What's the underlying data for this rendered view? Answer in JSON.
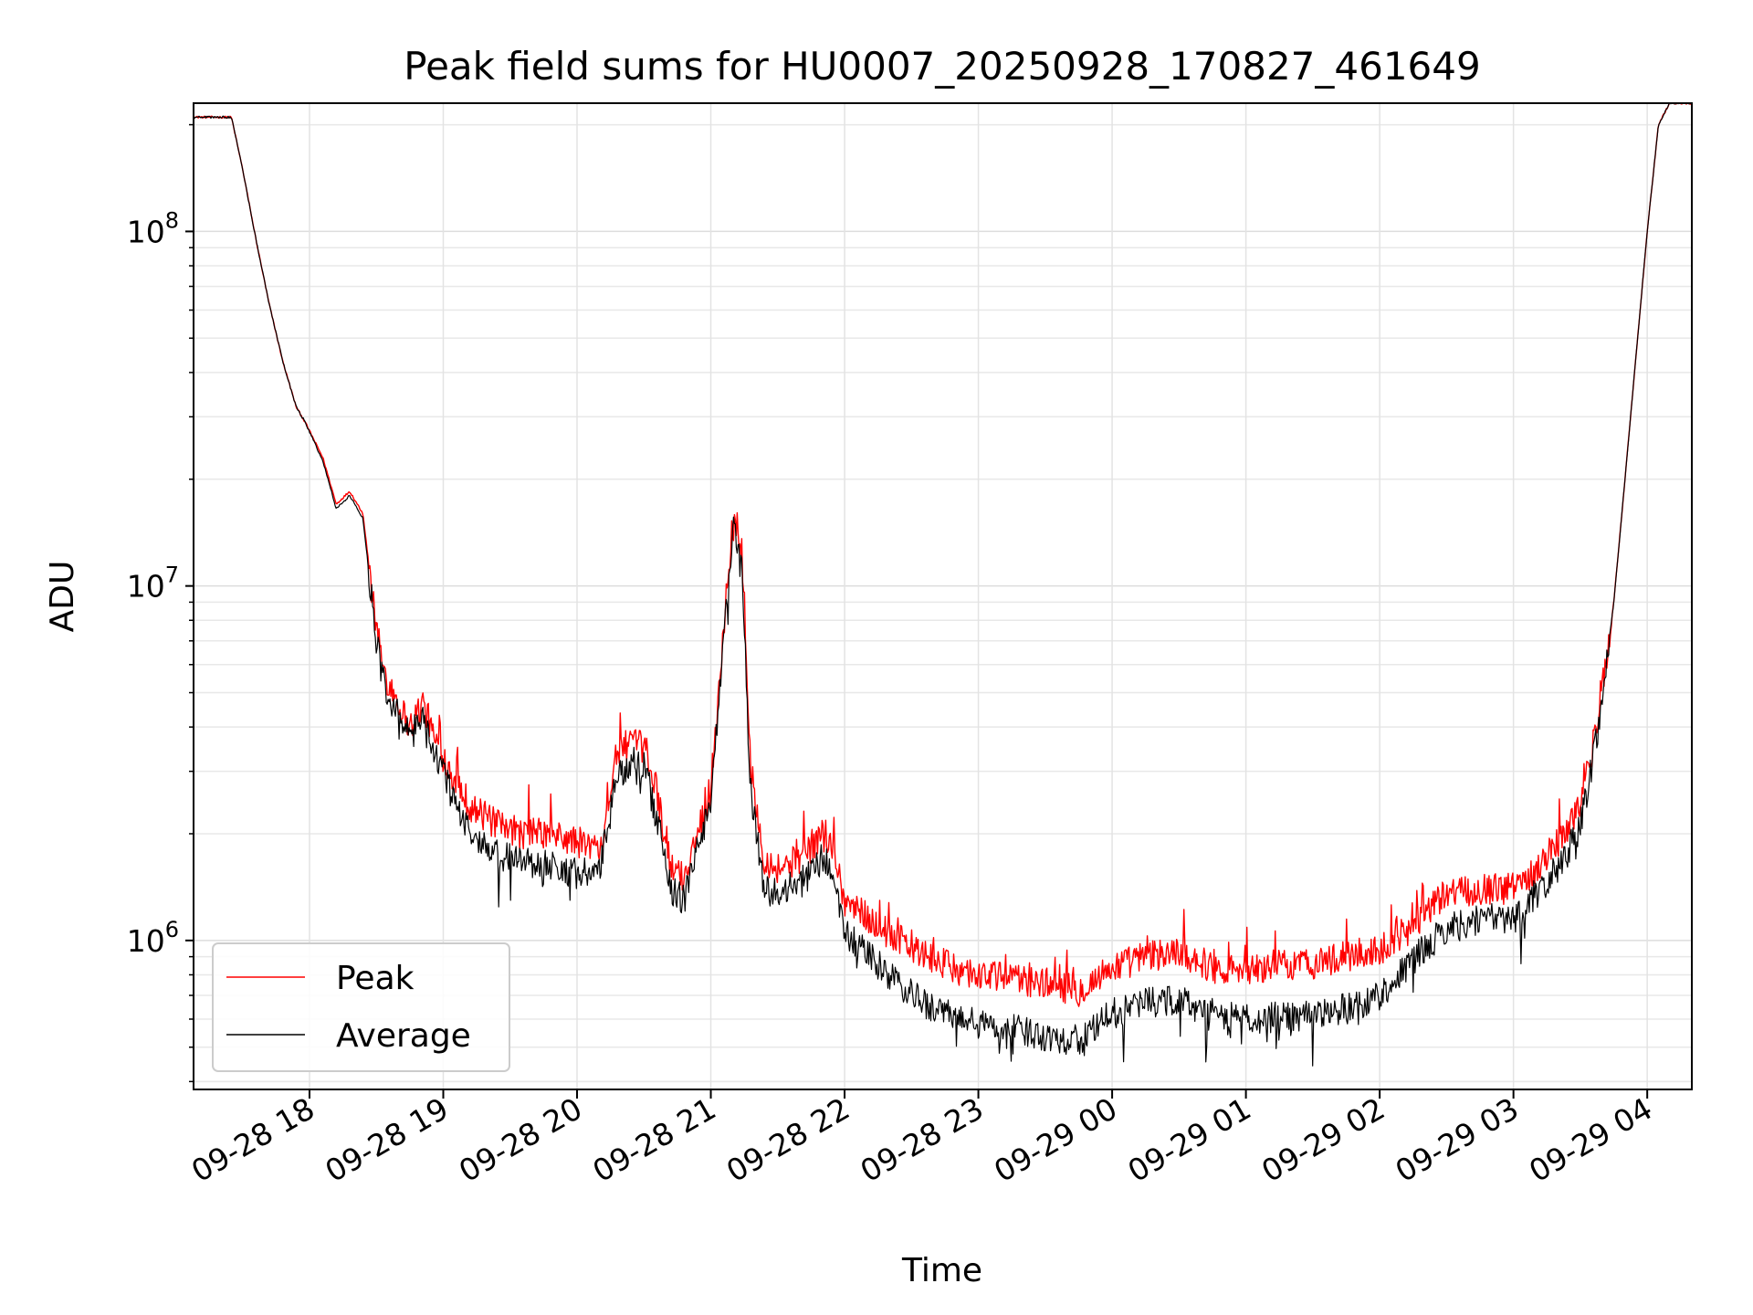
{
  "chart_data": {
    "type": "line",
    "title": "Peak field sums for HU0007_20250928_170827_461649",
    "xlabel": "Time",
    "ylabel": "ADU",
    "yscale": "log",
    "ylim": [
      380000,
      230000000
    ],
    "xlim": [
      "2025-09-28 17:08",
      "2025-09-29 04:20"
    ],
    "grid": true,
    "legend_position": "lower-left",
    "x_tick_labels": [
      "09-28 18",
      "09-28 19",
      "09-28 20",
      "09-28 21",
      "09-28 22",
      "09-28 23",
      "09-29 00",
      "09-29 01",
      "09-29 02",
      "09-29 03",
      "09-29 04"
    ],
    "y_tick_labels": [
      {
        "value": 1000000,
        "base": "10",
        "exp": "6"
      },
      {
        "value": 10000000,
        "base": "10",
        "exp": "7"
      },
      {
        "value": 100000000,
        "base": "10",
        "exp": "8"
      }
    ],
    "x": [
      "2025-09-28 17:08",
      "2025-09-28 17:25",
      "2025-09-28 17:30",
      "2025-09-28 17:36",
      "2025-09-28 17:42",
      "2025-09-28 17:48",
      "2025-09-28 17:54",
      "2025-09-28 17:58",
      "2025-09-28 18:06",
      "2025-09-28 18:12",
      "2025-09-28 18:18",
      "2025-09-28 18:24",
      "2025-09-28 18:30",
      "2025-09-28 18:34",
      "2025-09-28 18:38",
      "2025-09-28 18:45",
      "2025-09-28 18:51",
      "2025-09-28 18:56",
      "2025-09-28 19:06",
      "2025-09-28 19:12",
      "2025-09-28 19:20",
      "2025-09-28 19:30",
      "2025-09-28 19:45",
      "2025-09-28 20:00",
      "2025-09-28 20:10",
      "2025-09-28 20:18",
      "2025-09-28 20:24",
      "2025-09-28 20:30",
      "2025-09-28 20:36",
      "2025-09-28 20:42",
      "2025-09-28 20:48",
      "2025-09-28 20:54",
      "2025-09-28 21:00",
      "2025-09-28 21:06",
      "2025-09-28 21:10",
      "2025-09-28 21:14",
      "2025-09-28 21:18",
      "2025-09-28 21:24",
      "2025-09-28 21:30",
      "2025-09-28 21:40",
      "2025-09-28 21:50",
      "2025-09-28 21:55",
      "2025-09-28 22:00",
      "2025-09-28 22:15",
      "2025-09-28 22:30",
      "2025-09-28 22:45",
      "2025-09-28 23:00",
      "2025-09-28 23:15",
      "2025-09-28 23:30",
      "2025-09-28 23:45",
      "2025-09-29 00:00",
      "2025-09-29 00:15",
      "2025-09-29 00:30",
      "2025-09-29 00:45",
      "2025-09-29 01:00",
      "2025-09-29 01:15",
      "2025-09-29 01:30",
      "2025-09-29 01:45",
      "2025-09-29 02:00",
      "2025-09-29 02:15",
      "2025-09-29 02:30",
      "2025-09-29 02:45",
      "2025-09-29 03:00",
      "2025-09-29 03:10",
      "2025-09-29 03:20",
      "2025-09-29 03:30",
      "2025-09-29 03:35",
      "2025-09-29 03:40",
      "2025-09-29 03:45",
      "2025-09-29 03:50",
      "2025-09-29 03:55",
      "2025-09-29 04:00",
      "2025-09-29 04:05",
      "2025-09-29 04:10",
      "2025-09-29 04:20"
    ],
    "series": [
      {
        "name": "Peak",
        "color": "#ff0000",
        "values": [
          210000000,
          210000000,
          150000000,
          95000000,
          62000000,
          43000000,
          32000000,
          29000000,
          23000000,
          17000000,
          18500000,
          16000000,
          7500000,
          5600000,
          5000000,
          4000000,
          4700000,
          3700000,
          2800000,
          2400000,
          2200000,
          2000000,
          2000000,
          1900000,
          1800000,
          3400000,
          3600000,
          3500000,
          2600000,
          1600000,
          1500000,
          2000000,
          2700000,
          8000000,
          15000000,
          12000000,
          3000000,
          1700000,
          1600000,
          1700000,
          2000000,
          1800000,
          1300000,
          1100000,
          950000,
          850000,
          800000,
          780000,
          760000,
          720000,
          840000,
          900000,
          930000,
          840000,
          820000,
          850000,
          860000,
          900000,
          940000,
          1100000,
          1350000,
          1400000,
          1400000,
          1600000,
          1900000,
          2400000,
          3400000,
          5000000,
          9000000,
          20000000,
          45000000,
          100000000,
          200000000,
          230000000,
          230000000
        ]
      },
      {
        "name": "Average",
        "color": "#000000",
        "values": [
          210000000,
          210000000,
          150000000,
          95000000,
          62000000,
          43000000,
          32000000,
          29000000,
          22500000,
          16500000,
          18000000,
          15500000,
          7000000,
          5100000,
          4600000,
          3700000,
          4400000,
          3400000,
          2400000,
          2000000,
          1800000,
          1700000,
          1650000,
          1550000,
          1550000,
          2900000,
          3200000,
          3100000,
          2200000,
          1400000,
          1300000,
          1800000,
          2500000,
          7500000,
          14500000,
          11000000,
          2600000,
          1400000,
          1350000,
          1450000,
          1700000,
          1550000,
          1050000,
          850000,
          700000,
          620000,
          580000,
          560000,
          540000,
          520000,
          620000,
          670000,
          680000,
          620000,
          600000,
          610000,
          620000,
          640000,
          700000,
          880000,
          1080000,
          1150000,
          1150000,
          1350000,
          1600000,
          2100000,
          3100000,
          4800000,
          9000000,
          20000000,
          45000000,
          100000000,
          200000000,
          230000000,
          230000000
        ]
      }
    ]
  }
}
